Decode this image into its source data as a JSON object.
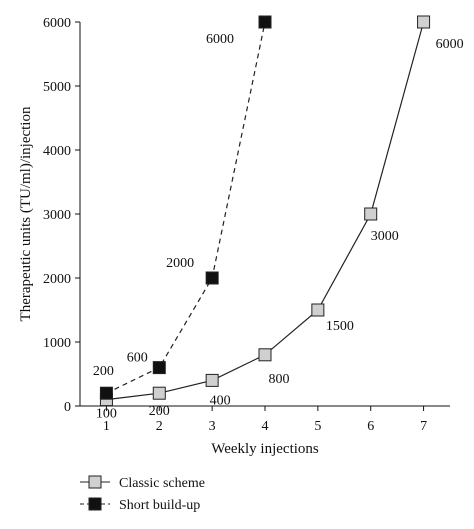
{
  "chart_data": {
    "type": "line",
    "xlabel": "Weekly injections",
    "ylabel": "Therapeutic units (TU/ml)/injection",
    "xlim": [
      0.5,
      7.5
    ],
    "ylim": [
      0,
      6000
    ],
    "x_ticks": [
      1,
      2,
      3,
      4,
      5,
      6,
      7
    ],
    "y_ticks": [
      0,
      1000,
      2000,
      3000,
      4000,
      5000,
      6000
    ],
    "grid": false,
    "legend_position": "bottom-left",
    "series": [
      {
        "name": "Classic scheme",
        "style": "solid",
        "marker": "square-light-gray",
        "x": [
          1,
          2,
          3,
          4,
          5,
          6,
          7
        ],
        "y": [
          100,
          200,
          400,
          800,
          1500,
          3000,
          6000
        ],
        "labels": [
          "100",
          "200",
          "400",
          "800",
          "1500",
          "3000",
          "6000"
        ]
      },
      {
        "name": "Short build-up",
        "style": "dashed",
        "marker": "square-black",
        "x": [
          1,
          2,
          3,
          4
        ],
        "y": [
          200,
          600,
          2000,
          6000
        ],
        "labels": [
          "200",
          "600",
          "2000",
          "6000"
        ]
      }
    ]
  },
  "colors": {
    "classic_marker": "#d0d0d0",
    "short_marker": "#111111",
    "line": "#222222"
  }
}
